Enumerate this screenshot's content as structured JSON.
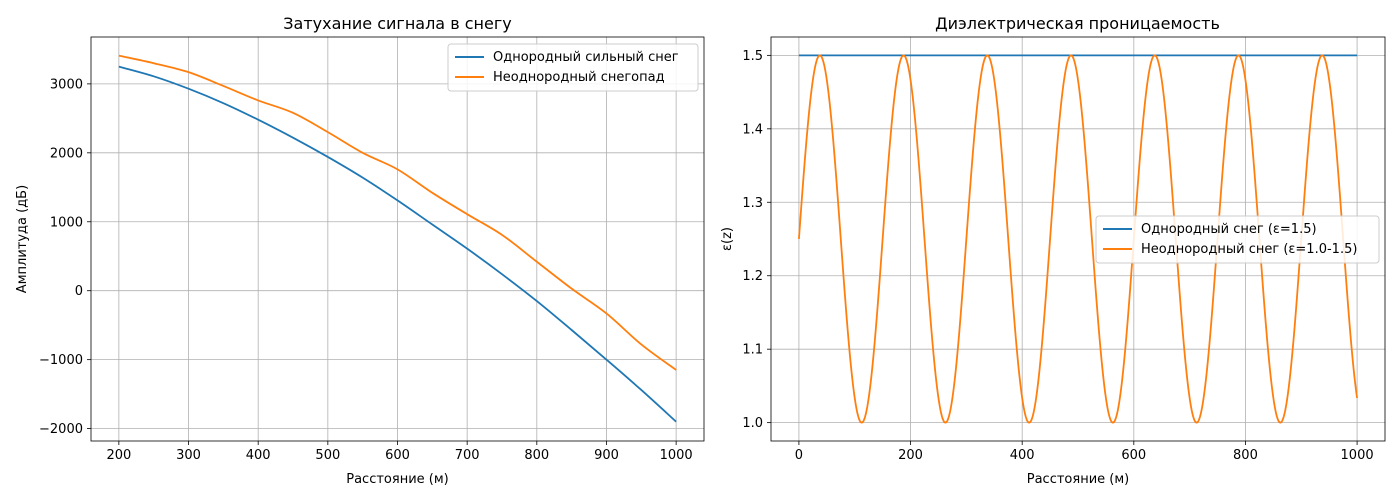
{
  "chart_data": [
    {
      "type": "line",
      "title": "Затухание сигнала в снегу",
      "xlabel": "Расстояние (м)",
      "ylabel": "Амплитуда (дБ)",
      "xlim": [
        160,
        1040
      ],
      "ylim": [
        -2180,
        3680
      ],
      "xticks": [
        200,
        300,
        400,
        500,
        600,
        700,
        800,
        900,
        1000
      ],
      "yticks": [
        -2000,
        -1000,
        0,
        1000,
        2000,
        3000
      ],
      "xtick_labels": [
        "200",
        "300",
        "400",
        "500",
        "600",
        "700",
        "800",
        "900",
        "1000"
      ],
      "ytick_labels": [
        "−2000",
        "−1000",
        "0",
        "1000",
        "2000",
        "3000"
      ],
      "grid": true,
      "legend_position": "top-right",
      "x": [
        200,
        250,
        300,
        350,
        400,
        450,
        500,
        550,
        600,
        650,
        700,
        750,
        800,
        850,
        900,
        950,
        1000
      ],
      "series": [
        {
          "name": "Однородный сильный снег",
          "color": "#1f77b4",
          "values": [
            3250,
            3110,
            2930,
            2720,
            2480,
            2220,
            1940,
            1640,
            1310,
            960,
            610,
            240,
            -150,
            -570,
            -1000,
            -1440,
            -1900
          ]
        },
        {
          "name": "Неоднородный снегопад",
          "color": "#ff7f0e",
          "values": [
            3410,
            3300,
            3170,
            2970,
            2760,
            2580,
            2300,
            2000,
            1760,
            1420,
            1110,
            810,
            420,
            30,
            -330,
            -780,
            -1150
          ]
        }
      ]
    },
    {
      "type": "line",
      "title": "Диэлектрическая проницаемость",
      "xlabel": "Расстояние (м)",
      "ylabel": "ε(z)",
      "xlim": [
        -50,
        1050
      ],
      "ylim": [
        0.975,
        1.525
      ],
      "xticks": [
        0,
        200,
        400,
        600,
        800,
        1000
      ],
      "yticks": [
        1.0,
        1.1,
        1.2,
        1.3,
        1.4,
        1.5
      ],
      "xtick_labels": [
        "0",
        "200",
        "400",
        "600",
        "800",
        "1000"
      ],
      "ytick_labels": [
        "1.0",
        "1.1",
        "1.2",
        "1.3",
        "1.4",
        "1.5"
      ],
      "grid": true,
      "legend_position": "center-right",
      "x_range": [
        0,
        1000
      ],
      "series": [
        {
          "name": "Однородный снег (ε=1.5)",
          "color": "#1f77b4",
          "constant": 1.5
        },
        {
          "name": "Неоднородный снег (ε=1.0-1.5)",
          "color": "#ff7f0e",
          "formula": "1.25 + 0.25*sin(2*pi*x/150)",
          "mean": 1.25,
          "amplitude": 0.25,
          "period": 150
        }
      ]
    }
  ]
}
